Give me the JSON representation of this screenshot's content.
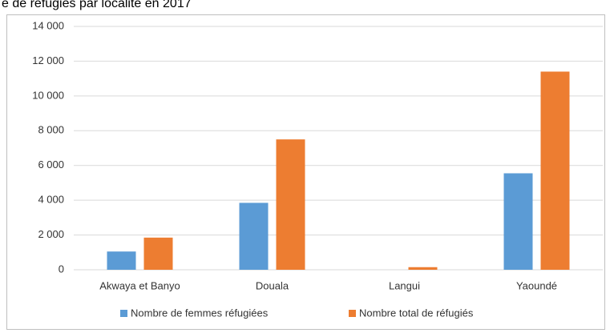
{
  "chart_data": {
    "type": "bar",
    "title": "e de réfugiés par localité en 2017",
    "categories": [
      "Akwaya et Banyo",
      "Douala",
      "Langui",
      "Yaoundé"
    ],
    "series": [
      {
        "name": "Nombre de femmes réfugiées",
        "color": "#5b9bd5",
        "values": [
          1050,
          3850,
          0,
          5550
        ]
      },
      {
        "name": "Nombre total de réfugiés",
        "color": "#ed7d31",
        "values": [
          1850,
          7500,
          150,
          11400
        ]
      }
    ],
    "ylim": [
      0,
      14000
    ],
    "yticks": [
      0,
      {
        "value": 2000,
        "label": "2 000"
      },
      {
        "value": 4000,
        "label": "4 000"
      },
      {
        "value": 6000,
        "label": "6 000"
      },
      {
        "value": 8000,
        "label": "8 000"
      },
      {
        "value": 10000,
        "label": "10 000"
      },
      {
        "value": 12000,
        "label": "12 000"
      },
      {
        "value": 14000,
        "label": "14 000"
      }
    ],
    "grid": true,
    "legend": "bottom"
  }
}
